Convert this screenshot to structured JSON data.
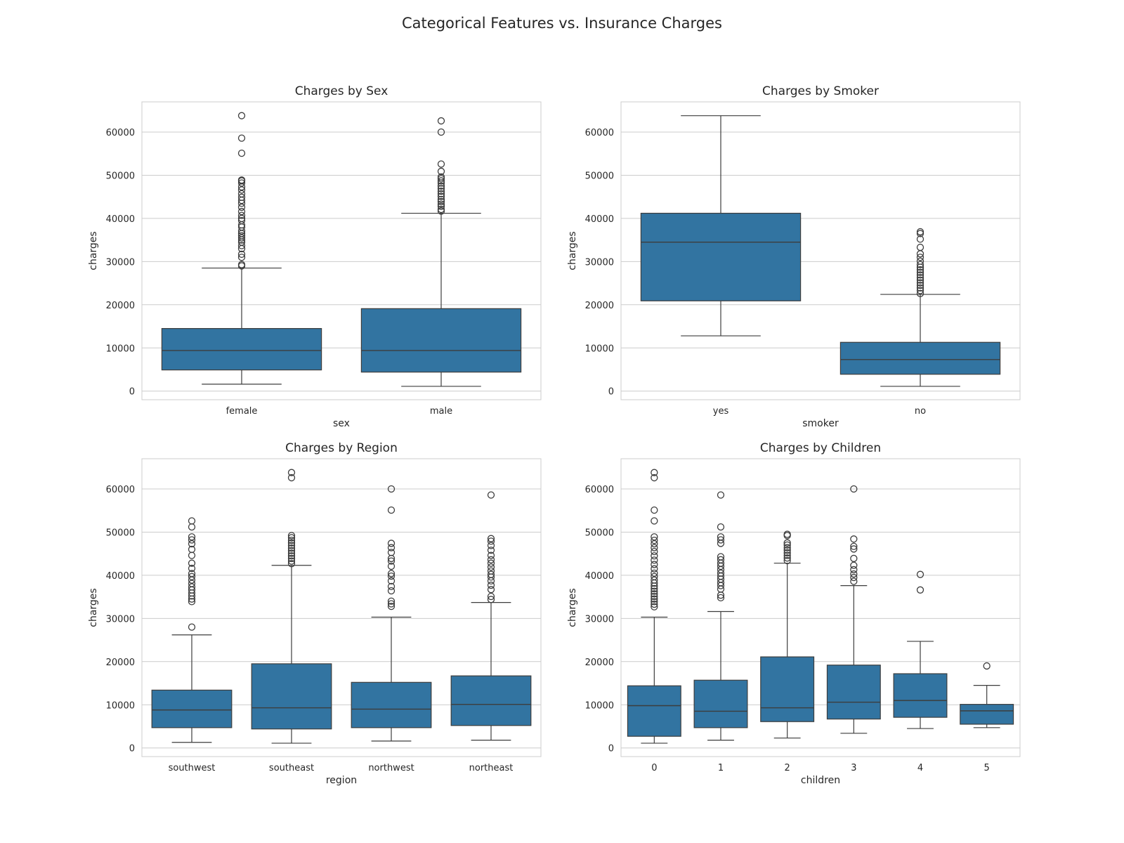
{
  "title": "Categorical Features vs. Insurance Charges",
  "colors": {
    "box": "#3274a1",
    "line": "#3d3d3d",
    "grid": "#cccccc"
  },
  "chart_data": [
    {
      "type": "box",
      "title": "Charges by Sex",
      "xlabel": "sex",
      "ylabel": "charges",
      "ylim": [
        -2000,
        67000
      ],
      "yticks": [
        0,
        10000,
        20000,
        30000,
        40000,
        50000,
        60000
      ],
      "grid": true,
      "categories": [
        "female",
        "male"
      ],
      "boxes": [
        {
          "q1": 4900,
          "median": 9400,
          "q3": 14500,
          "whisker_low": 1600,
          "whisker_high": 28500,
          "fliers": [
            29000,
            29300,
            31000,
            31700,
            33000,
            33700,
            34500,
            35000,
            35500,
            36000,
            36500,
            37100,
            38000,
            38500,
            39500,
            40000,
            40700,
            41600,
            42600,
            43500,
            44200,
            44900,
            45700,
            46600,
            47300,
            48200,
            48700,
            48900,
            55100,
            58600,
            63800
          ]
        },
        {
          "q1": 4400,
          "median": 9400,
          "q3": 19100,
          "whisker_low": 1100,
          "whisker_high": 41200,
          "fliers": [
            41700,
            42100,
            42800,
            43300,
            43900,
            44400,
            45100,
            45700,
            46300,
            46900,
            47500,
            48200,
            48700,
            49200,
            49600,
            50900,
            52600,
            60000,
            62600
          ]
        }
      ]
    },
    {
      "type": "box",
      "title": "Charges by Smoker",
      "xlabel": "smoker",
      "ylabel": "charges",
      "ylim": [
        -2000,
        67000
      ],
      "yticks": [
        0,
        10000,
        20000,
        30000,
        40000,
        50000,
        60000
      ],
      "grid": true,
      "categories": [
        "yes",
        "no"
      ],
      "boxes": [
        {
          "q1": 20900,
          "median": 34500,
          "q3": 41200,
          "whisker_low": 12800,
          "whisker_high": 63800,
          "fliers": []
        },
        {
          "q1": 3900,
          "median": 7300,
          "q3": 11300,
          "whisker_low": 1100,
          "whisker_high": 22400,
          "fliers": [
            22600,
            23300,
            23900,
            24500,
            25100,
            25700,
            26300,
            26900,
            27500,
            28100,
            28700,
            29300,
            30100,
            31000,
            31800,
            33300,
            35200,
            36500,
            36900
          ]
        }
      ]
    },
    {
      "type": "box",
      "title": "Charges by Region",
      "xlabel": "region",
      "ylabel": "charges",
      "ylim": [
        -2000,
        67000
      ],
      "yticks": [
        0,
        10000,
        20000,
        30000,
        40000,
        50000,
        60000
      ],
      "grid": true,
      "categories": [
        "southwest",
        "southeast",
        "northwest",
        "northeast"
      ],
      "boxes": [
        {
          "q1": 4700,
          "median": 8800,
          "q3": 13400,
          "whisker_low": 1300,
          "whisker_high": 26200,
          "fliers": [
            28000,
            33900,
            34500,
            35200,
            35900,
            36600,
            37300,
            38100,
            38900,
            39700,
            40400,
            41600,
            42800,
            44600,
            46000,
            47300,
            48200,
            48900,
            51200,
            52600
          ]
        },
        {
          "q1": 4400,
          "median": 9300,
          "q3": 19500,
          "whisker_low": 1100,
          "whisker_high": 42300,
          "fliers": [
            42700,
            43300,
            43900,
            44500,
            45100,
            45700,
            46300,
            46900,
            47500,
            48100,
            48700,
            49200,
            62600,
            63800
          ]
        },
        {
          "q1": 4700,
          "median": 9000,
          "q3": 15200,
          "whisker_low": 1600,
          "whisker_high": 30300,
          "fliers": [
            32800,
            33400,
            34000,
            36400,
            37400,
            38700,
            39800,
            40400,
            42100,
            43300,
            43900,
            45300,
            46400,
            47400,
            55100,
            60000
          ]
        },
        {
          "q1": 5200,
          "median": 10100,
          "q3": 16700,
          "whisker_low": 1800,
          "whisker_high": 33700,
          "fliers": [
            34400,
            35100,
            36700,
            37700,
            38700,
            39600,
            40200,
            41000,
            41900,
            42800,
            43600,
            44600,
            45800,
            46900,
            47900,
            48500,
            58600
          ]
        }
      ]
    },
    {
      "type": "box",
      "title": "Charges by Children",
      "xlabel": "children",
      "ylabel": "charges",
      "ylim": [
        -2000,
        67000
      ],
      "yticks": [
        0,
        10000,
        20000,
        30000,
        40000,
        50000,
        60000
      ],
      "grid": true,
      "categories": [
        "0",
        "1",
        "2",
        "3",
        "4",
        "5"
      ],
      "boxes": [
        {
          "q1": 2700,
          "median": 9800,
          "q3": 14400,
          "whisker_low": 1100,
          "whisker_high": 30300,
          "fliers": [
            32700,
            33300,
            33900,
            34500,
            35100,
            35700,
            36300,
            36900,
            37500,
            38200,
            38900,
            39700,
            40500,
            41500,
            42500,
            43500,
            44500,
            45500,
            46400,
            47300,
            48100,
            48900,
            52600,
            55100,
            62600,
            63800
          ]
        },
        {
          "q1": 4700,
          "median": 8500,
          "q3": 15700,
          "whisker_low": 1800,
          "whisker_high": 31600,
          "fliers": [
            34800,
            35400,
            36800,
            37600,
            38300,
            39100,
            39800,
            40500,
            41300,
            42100,
            42800,
            43600,
            44300,
            47400,
            48200,
            48900,
            51200,
            58600
          ]
        },
        {
          "q1": 6100,
          "median": 9300,
          "q3": 21100,
          "whisker_low": 2300,
          "whisker_high": 42800,
          "fliers": [
            43400,
            44000,
            44600,
            45200,
            45800,
            46400,
            47000,
            47500,
            49200,
            49500
          ]
        },
        {
          "q1": 6700,
          "median": 10600,
          "q3": 19200,
          "whisker_low": 3400,
          "whisker_high": 37600,
          "fliers": [
            38600,
            39500,
            40300,
            41300,
            42300,
            43900,
            46100,
            46700,
            48400,
            60000
          ]
        },
        {
          "q1": 7100,
          "median": 11000,
          "q3": 17200,
          "whisker_low": 4500,
          "whisker_high": 24700,
          "fliers": [
            36600,
            40200
          ]
        },
        {
          "q1": 5500,
          "median": 8600,
          "q3": 10100,
          "whisker_low": 4700,
          "whisker_high": 14500,
          "fliers": [
            19000
          ]
        }
      ]
    }
  ]
}
